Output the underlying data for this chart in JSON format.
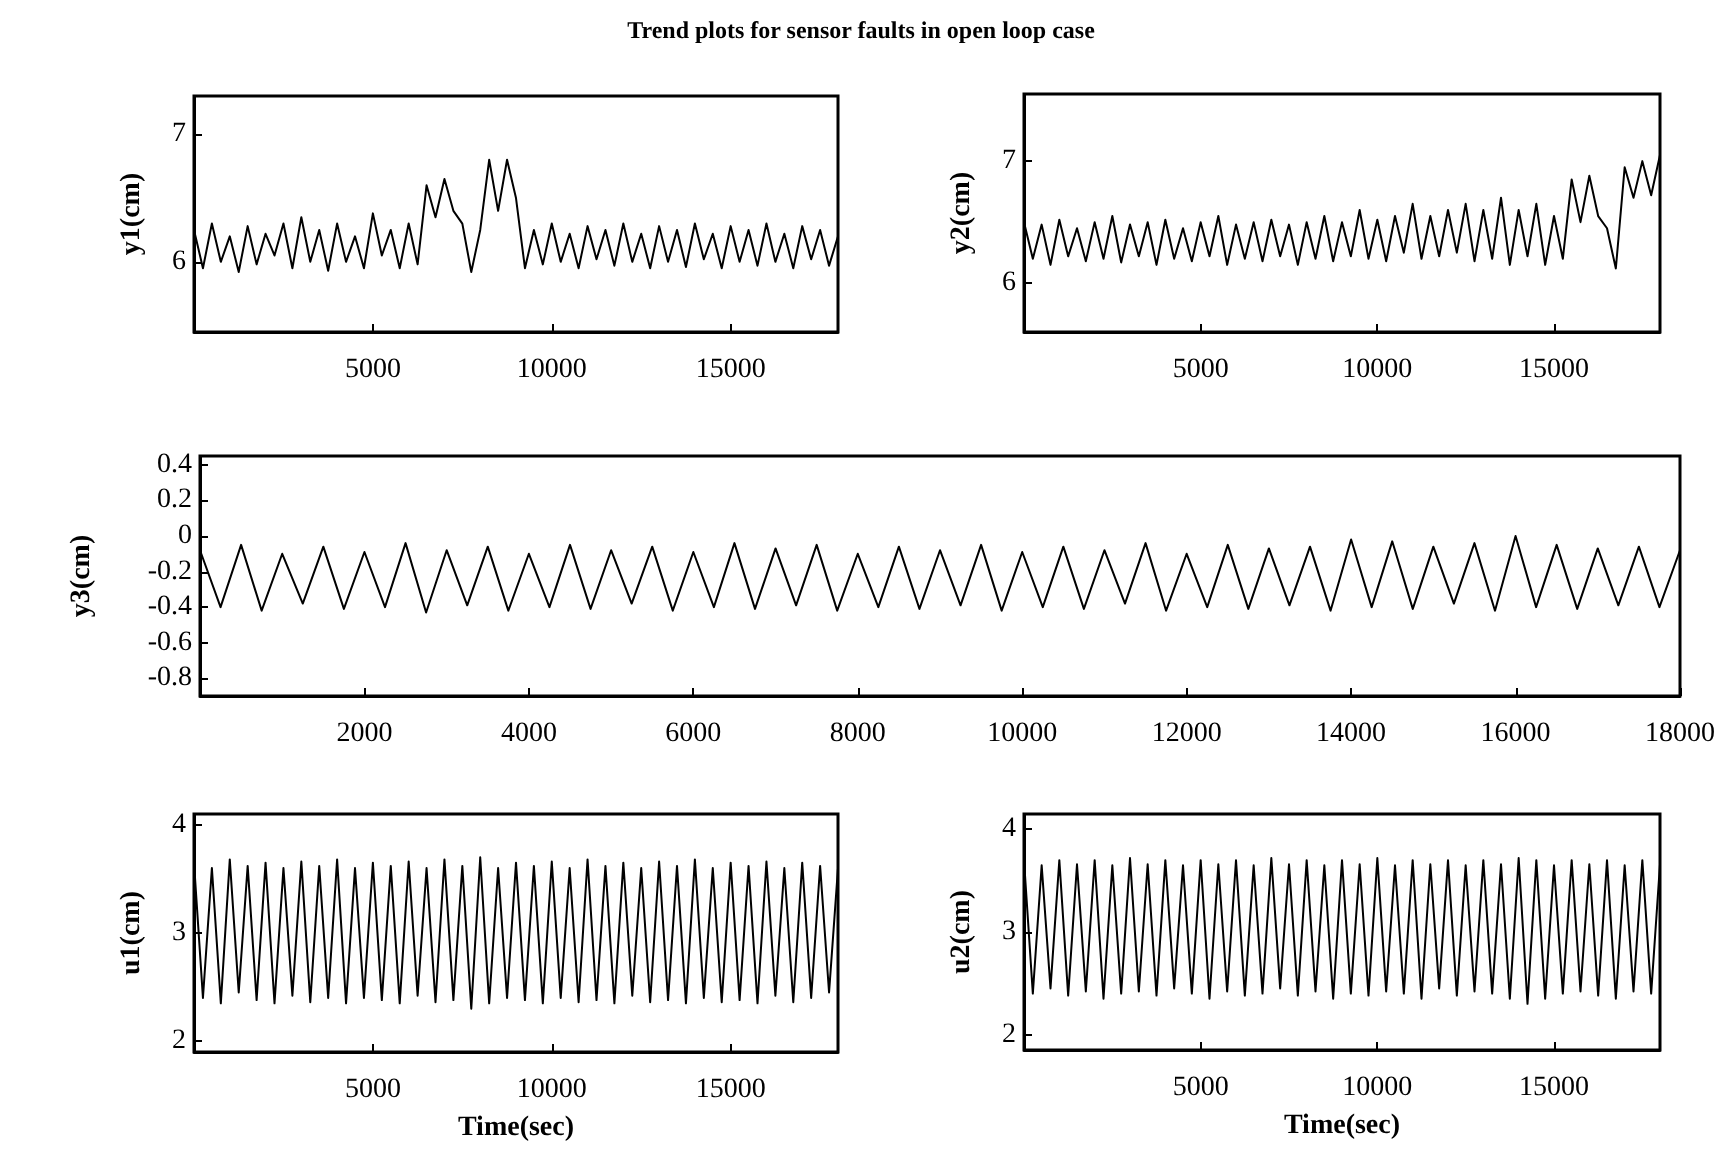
{
  "chart_data": [
    {
      "type": "line",
      "title": "Trend plots for sensor faults in open loop case",
      "ylabel": "y1(cm)",
      "grid": false,
      "xlim": [
        0,
        18000
      ],
      "xticks": [
        5000,
        10000,
        15000
      ],
      "ylim": [
        5.45,
        7.3
      ],
      "yticks": [
        6,
        7
      ],
      "x": [
        0,
        250,
        500,
        750,
        1000,
        1250,
        1500,
        1750,
        2000,
        2250,
        2500,
        2750,
        3000,
        3250,
        3500,
        3750,
        4000,
        4250,
        4500,
        4750,
        5000,
        5250,
        5500,
        5750,
        6000,
        6250,
        6500,
        6750,
        7000,
        7250,
        7500,
        7750,
        8000,
        8250,
        8500,
        8750,
        9000,
        9250,
        9500,
        9750,
        10000,
        10250,
        10500,
        10750,
        11000,
        11250,
        11500,
        11750,
        12000,
        12250,
        12500,
        12750,
        13000,
        13250,
        13500,
        13750,
        14000,
        14250,
        14500,
        14750,
        15000,
        15250,
        15500,
        15750,
        16000,
        16250,
        16500,
        16750,
        17000,
        17250,
        17500,
        17750,
        18000
      ],
      "series": [
        {
          "color": "#000000",
          "values": [
            6.25,
            5.95,
            6.3,
            6.0,
            6.2,
            5.92,
            6.28,
            5.98,
            6.22,
            6.05,
            6.3,
            5.95,
            6.35,
            6.0,
            6.25,
            5.93,
            6.3,
            6.0,
            6.2,
            5.95,
            6.38,
            6.05,
            6.25,
            5.95,
            6.3,
            5.98,
            6.6,
            6.35,
            6.65,
            6.4,
            6.3,
            5.92,
            6.25,
            6.8,
            6.4,
            6.8,
            6.5,
            5.95,
            6.25,
            5.98,
            6.3,
            6.0,
            6.22,
            5.95,
            6.28,
            6.02,
            6.25,
            5.97,
            6.3,
            6.0,
            6.22,
            5.95,
            6.28,
            6.0,
            6.25,
            5.96,
            6.3,
            6.02,
            6.22,
            5.95,
            6.28,
            6.0,
            6.25,
            5.97,
            6.3,
            6.0,
            6.22,
            5.95,
            6.28,
            6.02,
            6.25,
            5.97,
            6.2
          ]
        }
      ]
    },
    {
      "type": "line",
      "ylabel": "y2(cm)",
      "grid": false,
      "xlim": [
        0,
        18000
      ],
      "xticks": [
        5000,
        10000,
        15000
      ],
      "ylim": [
        5.6,
        7.55
      ],
      "yticks": [
        6,
        7
      ],
      "x": [
        0,
        250,
        500,
        750,
        1000,
        1250,
        1500,
        1750,
        2000,
        2250,
        2500,
        2750,
        3000,
        3250,
        3500,
        3750,
        4000,
        4250,
        4500,
        4750,
        5000,
        5250,
        5500,
        5750,
        6000,
        6250,
        6500,
        6750,
        7000,
        7250,
        7500,
        7750,
        8000,
        8250,
        8500,
        8750,
        9000,
        9250,
        9500,
        9750,
        10000,
        10250,
        10500,
        10750,
        11000,
        11250,
        11500,
        11750,
        12000,
        12250,
        12500,
        12750,
        13000,
        13250,
        13500,
        13750,
        14000,
        14250,
        14500,
        14750,
        15000,
        15250,
        15500,
        15750,
        16000,
        16250,
        16500,
        16750,
        17000,
        17250,
        17500,
        17750,
        18000
      ],
      "series": [
        {
          "color": "#000000",
          "values": [
            6.5,
            6.2,
            6.48,
            6.15,
            6.52,
            6.22,
            6.45,
            6.18,
            6.5,
            6.2,
            6.55,
            6.17,
            6.48,
            6.22,
            6.5,
            6.15,
            6.52,
            6.2,
            6.45,
            6.18,
            6.5,
            6.22,
            6.55,
            6.15,
            6.48,
            6.2,
            6.5,
            6.18,
            6.52,
            6.22,
            6.48,
            6.15,
            6.5,
            6.2,
            6.55,
            6.18,
            6.5,
            6.22,
            6.6,
            6.2,
            6.52,
            6.18,
            6.55,
            6.25,
            6.65,
            6.2,
            6.55,
            6.22,
            6.6,
            6.25,
            6.65,
            6.18,
            6.6,
            6.2,
            6.7,
            6.15,
            6.6,
            6.22,
            6.65,
            6.15,
            6.55,
            6.2,
            6.85,
            6.5,
            6.88,
            6.55,
            6.45,
            6.12,
            6.95,
            6.7,
            7.0,
            6.72,
            7.05
          ]
        }
      ]
    },
    {
      "type": "line",
      "ylabel": "y3(cm)",
      "grid": false,
      "xlim": [
        0,
        18000
      ],
      "xticks": [
        2000,
        4000,
        6000,
        8000,
        10000,
        12000,
        14000,
        16000,
        18000
      ],
      "ylim": [
        -0.9,
        0.45
      ],
      "yticks": [
        -0.8,
        -0.6,
        -0.4,
        -0.2,
        0,
        0.2,
        0.4
      ],
      "x": [
        0,
        250,
        500,
        750,
        1000,
        1250,
        1500,
        1750,
        2000,
        2250,
        2500,
        2750,
        3000,
        3250,
        3500,
        3750,
        4000,
        4250,
        4500,
        4750,
        5000,
        5250,
        5500,
        5750,
        6000,
        6250,
        6500,
        6750,
        7000,
        7250,
        7500,
        7750,
        8000,
        8250,
        8500,
        8750,
        9000,
        9250,
        9500,
        9750,
        10000,
        10250,
        10500,
        10750,
        11000,
        11250,
        11500,
        11750,
        12000,
        12250,
        12500,
        12750,
        13000,
        13250,
        13500,
        13750,
        14000,
        14250,
        14500,
        14750,
        15000,
        15250,
        15500,
        15750,
        16000,
        16250,
        16500,
        16750,
        17000,
        17250,
        17500,
        17750,
        18000
      ],
      "series": [
        {
          "color": "#000000",
          "values": [
            -0.08,
            -0.4,
            -0.05,
            -0.42,
            -0.1,
            -0.38,
            -0.06,
            -0.41,
            -0.09,
            -0.4,
            -0.04,
            -0.43,
            -0.08,
            -0.39,
            -0.06,
            -0.42,
            -0.1,
            -0.4,
            -0.05,
            -0.41,
            -0.08,
            -0.38,
            -0.06,
            -0.42,
            -0.09,
            -0.4,
            -0.04,
            -0.41,
            -0.07,
            -0.39,
            -0.05,
            -0.42,
            -0.1,
            -0.4,
            -0.06,
            -0.41,
            -0.08,
            -0.39,
            -0.05,
            -0.42,
            -0.09,
            -0.4,
            -0.06,
            -0.41,
            -0.08,
            -0.38,
            -0.04,
            -0.42,
            -0.1,
            -0.4,
            -0.05,
            -0.41,
            -0.07,
            -0.39,
            -0.06,
            -0.42,
            -0.02,
            -0.4,
            -0.03,
            -0.41,
            -0.06,
            -0.38,
            -0.04,
            -0.42,
            0.0,
            -0.4,
            -0.05,
            -0.41,
            -0.07,
            -0.39,
            -0.06,
            -0.4,
            -0.08
          ]
        }
      ]
    },
    {
      "type": "line",
      "ylabel": "u1(cm)",
      "xlabel": "Time(sec)",
      "grid": false,
      "xlim": [
        0,
        18000
      ],
      "xticks": [
        5000,
        10000,
        15000
      ],
      "ylim": [
        1.9,
        4.1
      ],
      "yticks": [
        2,
        3,
        4
      ],
      "x": [
        0,
        250,
        500,
        750,
        1000,
        1250,
        1500,
        1750,
        2000,
        2250,
        2500,
        2750,
        3000,
        3250,
        3500,
        3750,
        4000,
        4250,
        4500,
        4750,
        5000,
        5250,
        5500,
        5750,
        6000,
        6250,
        6500,
        6750,
        7000,
        7250,
        7500,
        7750,
        8000,
        8250,
        8500,
        8750,
        9000,
        9250,
        9500,
        9750,
        10000,
        10250,
        10500,
        10750,
        11000,
        11250,
        11500,
        11750,
        12000,
        12250,
        12500,
        12750,
        13000,
        13250,
        13500,
        13750,
        14000,
        14250,
        14500,
        14750,
        15000,
        15250,
        15500,
        15750,
        16000,
        16250,
        16500,
        16750,
        17000,
        17250,
        17500,
        17750,
        18000
      ],
      "series": [
        {
          "color": "#000000",
          "values": [
            3.65,
            2.4,
            3.6,
            2.35,
            3.68,
            2.45,
            3.62,
            2.38,
            3.65,
            2.35,
            3.6,
            2.42,
            3.66,
            2.36,
            3.62,
            2.4,
            3.68,
            2.35,
            3.6,
            2.4,
            3.65,
            2.38,
            3.62,
            2.35,
            3.66,
            2.42,
            3.6,
            2.36,
            3.68,
            2.38,
            3.62,
            2.3,
            3.7,
            2.35,
            3.6,
            2.4,
            3.65,
            2.38,
            3.62,
            2.35,
            3.66,
            2.4,
            3.6,
            2.36,
            3.68,
            2.38,
            3.62,
            2.35,
            3.65,
            2.42,
            3.6,
            2.36,
            3.66,
            2.38,
            3.62,
            2.35,
            3.68,
            2.4,
            3.6,
            2.36,
            3.65,
            2.38,
            3.62,
            2.35,
            3.66,
            2.42,
            3.6,
            2.36,
            3.65,
            2.4,
            3.62,
            2.45,
            3.6
          ]
        }
      ]
    },
    {
      "type": "line",
      "ylabel": "u2(cm)",
      "xlabel": "Time(sec)",
      "grid": false,
      "xlim": [
        0,
        18000
      ],
      "xticks": [
        5000,
        10000,
        15000
      ],
      "ylim": [
        1.85,
        4.15
      ],
      "yticks": [
        2,
        3,
        4
      ],
      "x": [
        0,
        250,
        500,
        750,
        1000,
        1250,
        1500,
        1750,
        2000,
        2250,
        2500,
        2750,
        3000,
        3250,
        3500,
        3750,
        4000,
        4250,
        4500,
        4750,
        5000,
        5250,
        5500,
        5750,
        6000,
        6250,
        6500,
        6750,
        7000,
        7250,
        7500,
        7750,
        8000,
        8250,
        8500,
        8750,
        9000,
        9250,
        9500,
        9750,
        10000,
        10250,
        10500,
        10750,
        11000,
        11250,
        11500,
        11750,
        12000,
        12250,
        12500,
        12750,
        13000,
        13250,
        13500,
        13750,
        14000,
        14250,
        14500,
        14750,
        15000,
        15250,
        15500,
        15750,
        16000,
        16250,
        16500,
        16750,
        17000,
        17250,
        17500,
        17750,
        18000
      ],
      "series": [
        {
          "color": "#000000",
          "values": [
            3.7,
            2.4,
            3.65,
            2.45,
            3.7,
            2.38,
            3.66,
            2.42,
            3.7,
            2.35,
            3.65,
            2.4,
            3.72,
            2.42,
            3.66,
            2.38,
            3.7,
            2.45,
            3.65,
            2.4,
            3.7,
            2.35,
            3.66,
            2.42,
            3.7,
            2.38,
            3.65,
            2.4,
            3.72,
            2.45,
            3.66,
            2.38,
            3.7,
            2.42,
            3.65,
            2.35,
            3.7,
            2.4,
            3.66,
            2.38,
            3.72,
            2.42,
            3.65,
            2.4,
            3.7,
            2.35,
            3.66,
            2.45,
            3.7,
            2.38,
            3.65,
            2.42,
            3.7,
            2.4,
            3.66,
            2.35,
            3.72,
            2.3,
            3.7,
            2.35,
            3.65,
            2.4,
            3.7,
            2.42,
            3.66,
            2.38,
            3.7,
            2.35,
            3.65,
            2.42,
            3.7,
            2.4,
            3.66
          ]
        }
      ]
    }
  ]
}
